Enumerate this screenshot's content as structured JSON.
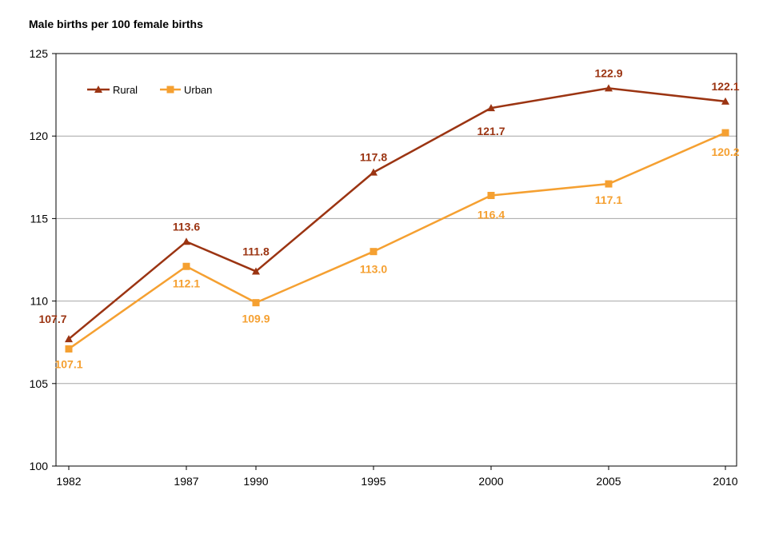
{
  "chart_data": {
    "type": "line",
    "title": "",
    "ylabel": "Male births per 100 female births",
    "xlabel": "",
    "x": [
      1982,
      1987,
      1990,
      1995,
      2000,
      2005,
      2010
    ],
    "x_tick_labels": [
      "1982",
      "1987",
      "1990",
      "1995",
      "2000",
      "2005",
      "2010"
    ],
    "ylim": [
      100,
      125
    ],
    "y_ticks": [
      100,
      105,
      110,
      115,
      120,
      125
    ],
    "y_tick_labels": [
      "100",
      "105",
      "110",
      "115",
      "120",
      "125"
    ],
    "grid": "horizontal",
    "legend_position": "top-left",
    "series": [
      {
        "name": "Rural",
        "color": "#9b3412",
        "marker": "triangle",
        "values": [
          107.7,
          113.6,
          111.8,
          117.8,
          121.7,
          122.9,
          122.1
        ],
        "labels": [
          "107.7",
          "113.6",
          "111.8",
          "117.8",
          "121.7",
          "122.9",
          "122.1"
        ]
      },
      {
        "name": "Urban",
        "color": "#f5a031",
        "marker": "square",
        "values": [
          107.1,
          112.1,
          109.9,
          113.0,
          116.4,
          117.1,
          120.2
        ],
        "labels": [
          "107.1",
          "112.1",
          "109.9",
          "113.0",
          "116.4",
          "117.1",
          "120.2"
        ]
      }
    ]
  }
}
